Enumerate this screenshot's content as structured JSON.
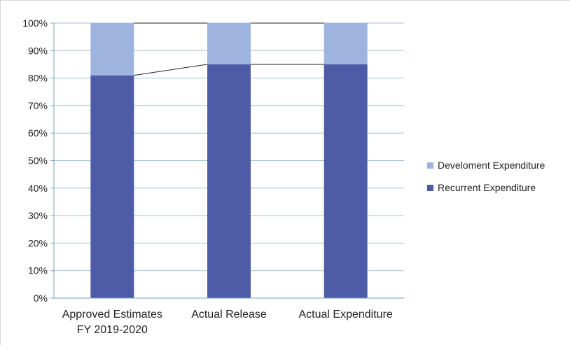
{
  "chart_data": {
    "type": "bar",
    "stacked": true,
    "percent_stacked": true,
    "categories": [
      "Approved Estimates FY 2019-2020",
      "Actual Release",
      "Actual Expenditure"
    ],
    "category_lines": [
      [
        "Approved Estimates",
        "FY 2019-2020"
      ],
      [
        "Actual Release"
      ],
      [
        "Actual Expenditure"
      ]
    ],
    "series": [
      {
        "name": "Recurrent Expenditure",
        "values": [
          81,
          85,
          85
        ],
        "color": "#4e5ba6"
      },
      {
        "name": "Develoment Expenditure",
        "values": [
          19,
          15,
          15
        ],
        "color": "#9fb3df"
      }
    ],
    "legend_order": [
      "Develoment Expenditure",
      "Recurrent Expenditure"
    ],
    "legend_position": "right",
    "series_lines": true,
    "ylim": [
      0,
      100
    ],
    "yticks": [
      "0%",
      "10%",
      "20%",
      "30%",
      "40%",
      "50%",
      "60%",
      "70%",
      "80%",
      "90%",
      "100%"
    ],
    "grid": true,
    "title": "",
    "xlabel": "",
    "ylabel": ""
  }
}
